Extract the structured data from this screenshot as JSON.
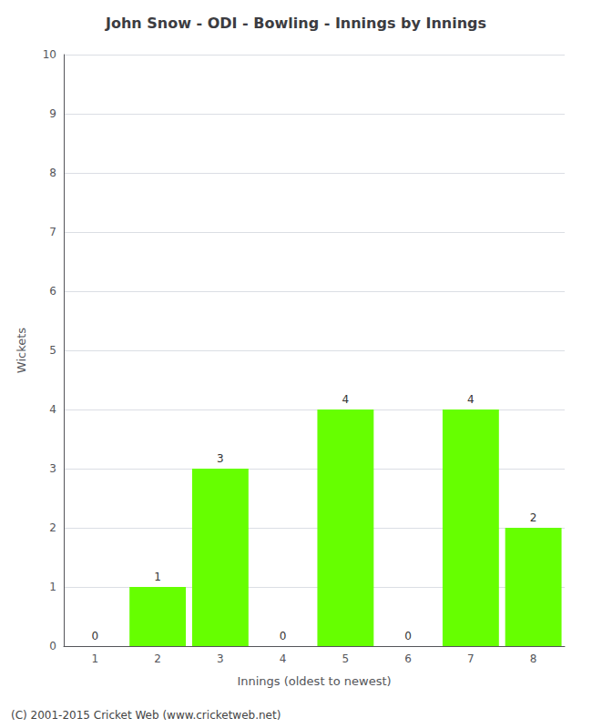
{
  "chart_data": {
    "type": "bar",
    "title": "John Snow - ODI - Bowling - Innings by Innings",
    "xlabel": "Innings (oldest to newest)",
    "ylabel": "Wickets",
    "categories": [
      1,
      2,
      3,
      4,
      5,
      6,
      7,
      8
    ],
    "values": [
      0,
      1,
      3,
      0,
      4,
      0,
      4,
      2
    ],
    "color": "#66ff00",
    "ylim": [
      0,
      10
    ],
    "yticks": [
      0,
      1,
      2,
      3,
      4,
      5,
      6,
      7,
      8,
      9,
      10
    ],
    "grid": true,
    "data_labels": true,
    "annotations": [
      "(C) 2001-2015 Cricket Web (www.cricketweb.net)"
    ]
  }
}
